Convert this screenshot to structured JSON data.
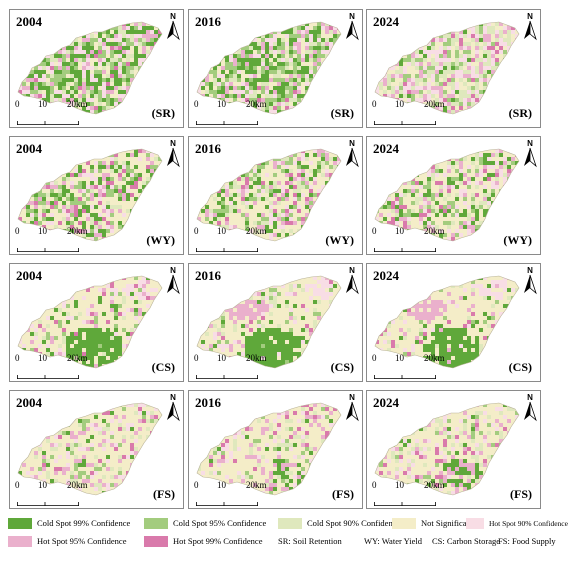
{
  "years": [
    "2004",
    "2016",
    "2024"
  ],
  "rows": [
    {
      "code": "(SR)"
    },
    {
      "code": "(WY)"
    },
    {
      "code": "(CS)"
    },
    {
      "code": "(FS)"
    }
  ],
  "north_label": "N",
  "scale": {
    "ticks": [
      "0",
      "10",
      "20km"
    ]
  },
  "legend": {
    "items": [
      {
        "label": "Cold  Spot  99%  Confidence",
        "color": "#5fa83a",
        "icon": "swatch"
      },
      {
        "label": "Cold  Spot  95%  Confidence",
        "color": "#a3cc7e",
        "icon": "swatch"
      },
      {
        "label": "Cold  Spot  90%  Confidence",
        "color": "#dfe8bd",
        "icon": "swatch"
      },
      {
        "label": "Not  Significant",
        "color": "#f4edc8",
        "icon": "swatch"
      },
      {
        "label": "Hot  Spot  90%  Confidence",
        "color": "#f8dde5",
        "icon": "swatch"
      },
      {
        "label": "Hot  Spot  95%  Confidence",
        "color": "#eab0cc",
        "icon": "swatch"
      },
      {
        "label": "Hot  Spot  99%  Confidence",
        "color": "#d97aab",
        "icon": "swatch"
      }
    ],
    "abbreviations": [
      "SR: Soil Retention",
      "WY: Water Yield",
      "CS: Carbon Storage",
      "FS: Food Supply"
    ]
  },
  "colors": {
    "c99": "#5fa83a",
    "c95": "#a3cc7e",
    "c90": "#dfe8bd",
    "ns": "#f4edc8",
    "h90": "#f8dde5",
    "h95": "#eab0cc",
    "h99": "#d97aab",
    "frame": "#8a8a8a"
  }
}
